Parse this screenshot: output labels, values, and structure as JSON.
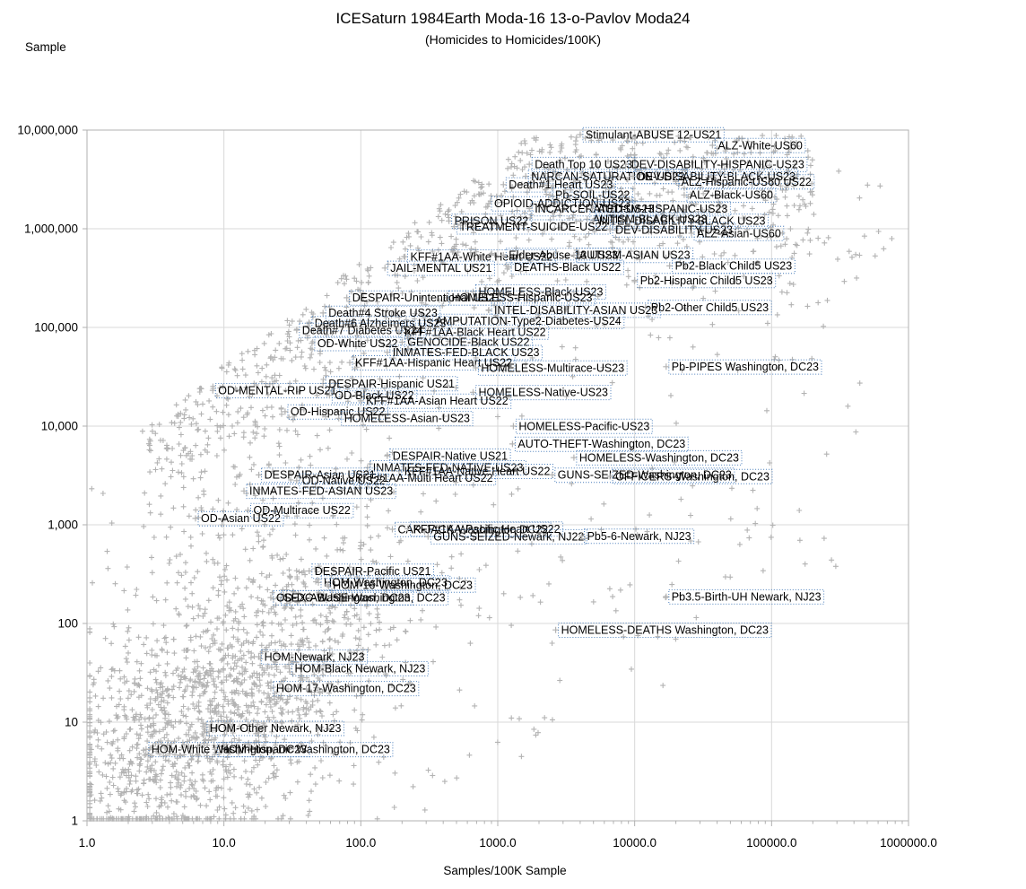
{
  "title": "ICESaturn 1984Earth Moda-16 13-o-Pavlov Moda24",
  "subtitle": "(Homicides to Homicides/100K)",
  "y_axis": {
    "title": "Sample",
    "scale": "log",
    "min": 1,
    "max": 10000000,
    "ticks": [
      "1",
      "10",
      "100",
      "1,000",
      "10,000",
      "100,000",
      "1,000,000",
      "10,000,000"
    ]
  },
  "x_axis": {
    "title": "Samples/100K Sample",
    "scale": "log",
    "min": 1,
    "max": 1000000,
    "ticks": [
      "1.0",
      "10.0",
      "100.0",
      "1000.0",
      "10000.0",
      "100000.0",
      "1000000.0"
    ]
  },
  "chart_data": {
    "type": "scatter",
    "title": "ICESaturn 1984Earth Moda-16 13-o-Pavlov Moda24",
    "subtitle": "(Homicides to Homicides/100K)",
    "xlabel": "Samples/100K Sample",
    "ylabel": "Sample",
    "xlim": [
      1,
      1000000
    ],
    "ylim": [
      1,
      10000000
    ],
    "log_x": true,
    "log_y": true,
    "grid": true,
    "marker": "plus",
    "colors": {
      "marker": "#b3b3b3",
      "grid": "#d9d9d9",
      "axis": "#b0b0b0",
      "label_border": "#4a7ebb",
      "label_text": "#000000"
    },
    "labeled_points": [
      {
        "label": "Stimulant-ABUSE 12-US21",
        "x": 4000,
        "y": 9000000
      },
      {
        "label": "ALZ-White-US60",
        "x": 37000,
        "y": 7000000
      },
      {
        "label": "Death Top 10 US23",
        "x": 1700,
        "y": 4500000
      },
      {
        "label": "DEV-DISABILITY-HISPANIC-US23",
        "x": 8600,
        "y": 4500000
      },
      {
        "label": "NARCAN-SATURATION-US23",
        "x": 1600,
        "y": 3400000
      },
      {
        "label": "DEV-DISABILITY-BLACK-US23",
        "x": 9600,
        "y": 3400000
      },
      {
        "label": "Death#1 Heart US23",
        "x": 1100,
        "y": 2800000
      },
      {
        "label": "ALZ-Hispanic-US60 US22",
        "x": 20000,
        "y": 3000000
      },
      {
        "label": "Pb-SOIL-US22",
        "x": 2400,
        "y": 2200000
      },
      {
        "label": "ALZ-Black-US60",
        "x": 23000,
        "y": 2200000
      },
      {
        "label": "OPIOID-ADDICTION-US23",
        "x": 860,
        "y": 1800000
      },
      {
        "label": "INCARCERATED-US23",
        "x": 1700,
        "y": 1600000
      },
      {
        "label": "AUTISM-HISPANIC-US23",
        "x": 4900,
        "y": 1600000
      },
      {
        "label": "AUTISM-BLACK-US23",
        "x": 4500,
        "y": 1250000
      },
      {
        "label": "INTEL-DISABILITY-BLACK US23",
        "x": 5000,
        "y": 1200000
      },
      {
        "label": "PRISON US22",
        "x": 440,
        "y": 1200000
      },
      {
        "label": "TREATMENT-SUICIDE-US22",
        "x": 480,
        "y": 1050000
      },
      {
        "label": "DEV-DISABILITY-US23",
        "x": 6600,
        "y": 980000
      },
      {
        "label": "ALZ-Asian-US60",
        "x": 26000,
        "y": 900000
      },
      {
        "label": "KFF#1AA-White Heart US22",
        "x": 210,
        "y": 520000
      },
      {
        "label": "Elder-Abuse-13 US23",
        "x": 1100,
        "y": 540000
      },
      {
        "label": "AUTISM-ASIAN US23",
        "x": 3600,
        "y": 540000
      },
      {
        "label": "JAIL-MENTAL US21",
        "x": 150,
        "y": 400000
      },
      {
        "label": "DEATHS-Black US22",
        "x": 1200,
        "y": 410000
      },
      {
        "label": "Pb2-Black Child5 US23",
        "x": 18000,
        "y": 420000
      },
      {
        "label": "Pb2-Hispanic Child5 US23",
        "x": 10000,
        "y": 300000
      },
      {
        "label": "Pb2-Other Child5 US23",
        "x": 12000,
        "y": 160000
      },
      {
        "label": "HOMELESS-Black US23",
        "x": 660,
        "y": 230000
      },
      {
        "label": "HOMELESS-Hispanic-US23",
        "x": 420,
        "y": 200000
      },
      {
        "label": "DESPAIR-Unintentional US21",
        "x": 79,
        "y": 200000
      },
      {
        "label": "INTEL-DISABILITY-ASIAN US23",
        "x": 860,
        "y": 150000
      },
      {
        "label": "AMPUTATION-Type2-Diabetes-US24",
        "x": 320,
        "y": 116000
      },
      {
        "label": "Death#4 Stroke US23",
        "x": 53,
        "y": 140000
      },
      {
        "label": "Death#6 Alzheimers US23",
        "x": 42,
        "y": 110000
      },
      {
        "label": "Death#7 Diabetes US24",
        "x": 34,
        "y": 94000
      },
      {
        "label": "KFF#1AA-Black Heart US22",
        "x": 190,
        "y": 90000
      },
      {
        "label": "OD-White US22",
        "x": 44,
        "y": 69000
      },
      {
        "label": "GENOCIDE-Black US22",
        "x": 200,
        "y": 71000
      },
      {
        "label": "INMATES-FED-BLACK US23",
        "x": 156,
        "y": 56000
      },
      {
        "label": "KFF#1AA-Hispanic Heart US22",
        "x": 83,
        "y": 44000
      },
      {
        "label": "HOMELESS-Multirace-US23",
        "x": 690,
        "y": 39000
      },
      {
        "label": "Pb-PIPES Washington, DC23",
        "x": 17000,
        "y": 40000
      },
      {
        "label": "DESPAIR-Hispanic US21",
        "x": 53,
        "y": 27000
      },
      {
        "label": "OD-MENTAL-RIP US21",
        "x": 8.3,
        "y": 23000
      },
      {
        "label": "OD-Black US22",
        "x": 59,
        "y": 20500
      },
      {
        "label": "HOMELESS-Native-US23",
        "x": 660,
        "y": 22000
      },
      {
        "label": "KFF#1AA-Asian Heart US22",
        "x": 100,
        "y": 18000
      },
      {
        "label": "OD-Hispanic US22",
        "x": 28,
        "y": 14000
      },
      {
        "label": "HOMELESS-Asian-US23",
        "x": 69,
        "y": 12000
      },
      {
        "label": "HOMELESS-Pacific-US23",
        "x": 1300,
        "y": 10000
      },
      {
        "label": "AUTO-THEFT-Washington, DC23",
        "x": 1280,
        "y": 6600
      },
      {
        "label": "DESPAIR-Native US21",
        "x": 156,
        "y": 5000
      },
      {
        "label": "INMATES-FED-NATIVE-US23",
        "x": 112,
        "y": 3800
      },
      {
        "label": "KFF#1AA-Native Heart US22",
        "x": 190,
        "y": 3500
      },
      {
        "label": "KFF#1AA-Multi Heart US22",
        "x": 83,
        "y": 3000
      },
      {
        "label": "GUNS-SEIZED-Washington, DC23",
        "x": 2500,
        "y": 3200
      },
      {
        "label": "HOMELESS-Washington, DC23",
        "x": 3600,
        "y": 4800
      },
      {
        "label": "OFFICERS-Washington, DC23",
        "x": 6600,
        "y": 3100
      },
      {
        "label": "DESPAIR-Asian US21",
        "x": 18,
        "y": 3200
      },
      {
        "label": "OD-Native US22",
        "x": 34,
        "y": 2800
      },
      {
        "label": "INMATES-FED-ASIAN US23",
        "x": 14,
        "y": 2200
      },
      {
        "label": "OD-Asian US22",
        "x": 6.2,
        "y": 1160
      },
      {
        "label": "OD-Multirace US22",
        "x": 15,
        "y": 1400
      },
      {
        "label": "CAR-JACK-Washington DC22",
        "x": 170,
        "y": 900
      },
      {
        "label": "KFF#1AA-Pacific Heart US22",
        "x": 220,
        "y": 910
      },
      {
        "label": "GUNS-SEIZED-Newark, NJ22",
        "x": 310,
        "y": 760
      },
      {
        "label": "Pb5-6-Newark, NJ23",
        "x": 4100,
        "y": 770
      },
      {
        "label": "DESPAIR-Pacific US21",
        "x": 42,
        "y": 340
      },
      {
        "label": "HOM-Washington, DC23",
        "x": 49,
        "y": 260
      },
      {
        "label": "HOM-16-Washington, DC23",
        "x": 57,
        "y": 246
      },
      {
        "label": "SEX-ABUSE-Washington, DC23",
        "x": 25,
        "y": 183
      },
      {
        "label": "OD-DC-Washington, DC23",
        "x": 22,
        "y": 183
      },
      {
        "label": "Pb3.5-Birth-UH Newark, NJ23",
        "x": 17000,
        "y": 187
      },
      {
        "label": "HOMELESS-DEATHS Washington, DC23",
        "x": 2650,
        "y": 86
      },
      {
        "label": "HOM-Newark, NJ23",
        "x": 18,
        "y": 46
      },
      {
        "label": "HOM-Black Newark, NJ23",
        "x": 30,
        "y": 35
      },
      {
        "label": "HOM-17-Washington, DC23",
        "x": 22,
        "y": 22
      },
      {
        "label": "HOM-Other Newark, NJ23",
        "x": 7.2,
        "y": 8.7
      },
      {
        "label": "HOM-White Washington, DC23",
        "x": 2.7,
        "y": 5.3
      },
      {
        "label": "HOM-Hispanic Washington, DC23",
        "x": 8.6,
        "y": 5.3
      }
    ],
    "background_cloud": {
      "description": "Several thousand unlabeled gray plus markers: a dense mass in the lower-left (x 1-100, y 1-1000), a broad diagonal band with a sharp upper edge rising to the top-right (log10 y = 1.04*log10 x + 3.58), and sparse scatter elsewhere.",
      "approx_point_count": 3100,
      "seed": 7,
      "clusters": [
        {
          "type": "gauss",
          "n": 1700,
          "mx": 0.95,
          "sx": 0.62,
          "my": 1.2,
          "sy": 0.85,
          "corr": 0.6
        },
        {
          "type": "band",
          "n": 1050,
          "x_min": 0.45,
          "x_max": 5.3,
          "slope": 1.04,
          "intercept": 3.58,
          "sigma": 0.85
        },
        {
          "type": "uniform",
          "n": 320,
          "x_min": 0.0,
          "x_max": 5.7,
          "y_min": 0.0,
          "y_max": 6.6,
          "upper_slope": 1.04,
          "upper_intercept": 3.58,
          "lower_offset": -2.9
        },
        {
          "type": "uniform",
          "n": 25,
          "x_min": 4.9,
          "x_max": 5.9,
          "y_min": 5.3,
          "y_max": 6.9,
          "upper_slope": 99,
          "upper_intercept": 0,
          "lower_offset": -99
        }
      ]
    }
  }
}
